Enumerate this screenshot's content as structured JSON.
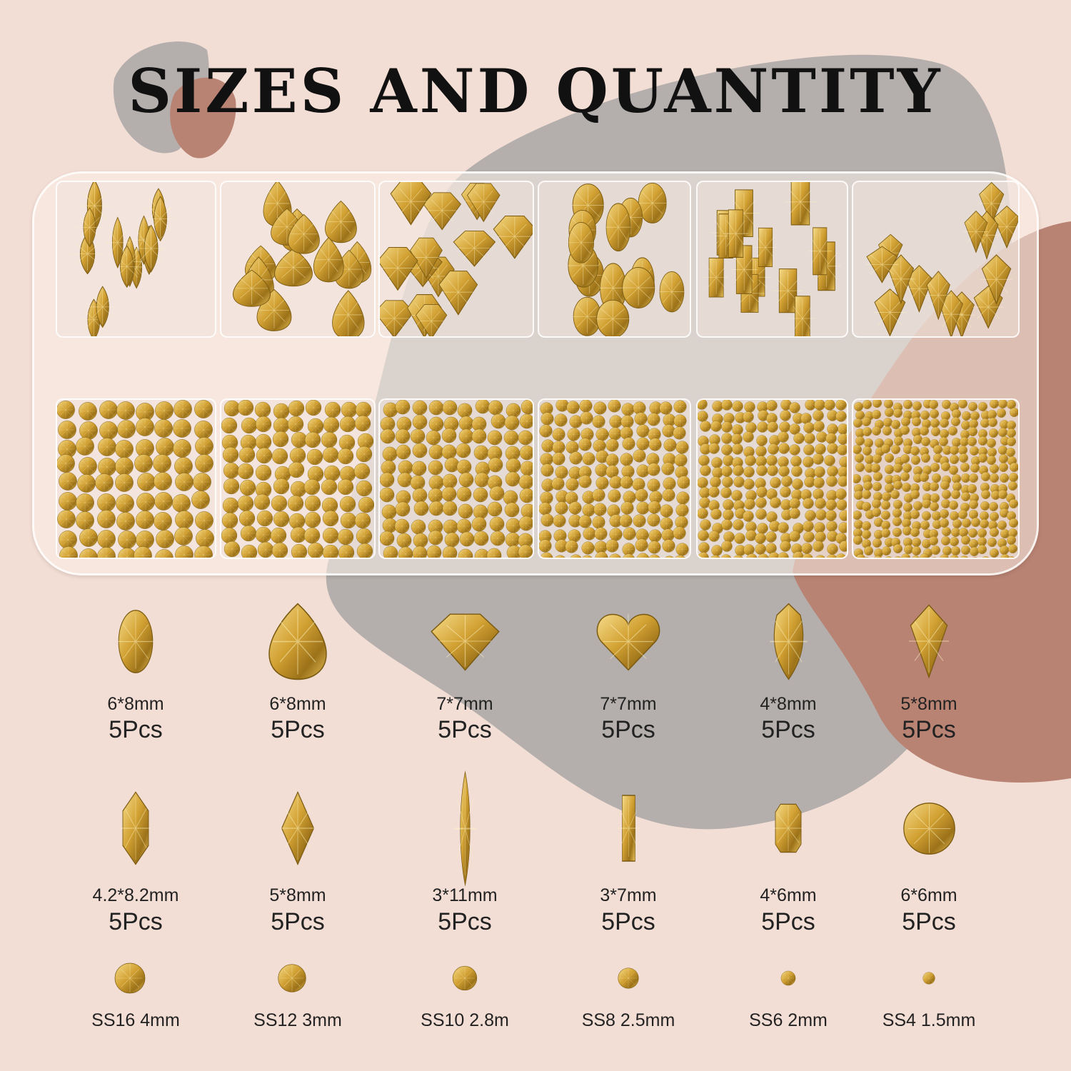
{
  "title": "SIZES AND QUANTITY",
  "colors": {
    "background": "#f3ded5",
    "blob_gray": "#b4afac",
    "blob_brown": "#b98373",
    "gold": "#d4a63a",
    "gold_dark": "#8a6414"
  },
  "shapes_row1": [
    {
      "shape": "oval",
      "size": "6*8mm",
      "qty": "5Pcs"
    },
    {
      "shape": "teardrop",
      "size": "6*8mm",
      "qty": "5Pcs"
    },
    {
      "shape": "fan-diamond",
      "size": "7*7mm",
      "qty": "5Pcs"
    },
    {
      "shape": "heart",
      "size": "7*7mm",
      "qty": "5Pcs"
    },
    {
      "shape": "narrow-drop",
      "size": "4*8mm",
      "qty": "5Pcs"
    },
    {
      "shape": "kite",
      "size": "5*8mm",
      "qty": "5Pcs"
    }
  ],
  "shapes_row2": [
    {
      "shape": "hexagon",
      "size": "4.2*8.2mm",
      "qty": "5Pcs"
    },
    {
      "shape": "rhombus",
      "size": "5*8mm",
      "qty": "5Pcs"
    },
    {
      "shape": "navette",
      "size": "3*11mm",
      "qty": "5Pcs"
    },
    {
      "shape": "rectangle",
      "size": "3*7mm",
      "qty": "5Pcs"
    },
    {
      "shape": "octagon",
      "size": "4*6mm",
      "qty": "5Pcs"
    },
    {
      "shape": "round",
      "size": "6*6mm",
      "qty": "5Pcs"
    }
  ],
  "round_sizes": [
    {
      "label": "SS16 4mm"
    },
    {
      "label": "SS12 3mm"
    },
    {
      "label": "SS10 2.8m"
    },
    {
      "label": "SS8 2.5mm"
    },
    {
      "label": "SS6 2mm"
    },
    {
      "label": "SS4 1.5mm"
    }
  ]
}
